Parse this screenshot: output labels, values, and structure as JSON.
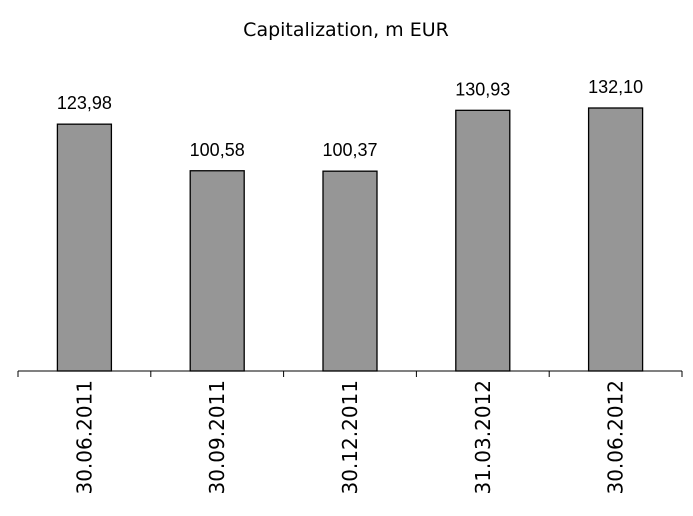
{
  "chart_data": {
    "type": "bar",
    "title": "Capitalization, m EUR",
    "categories": [
      "30.06.2011",
      "30.09.2011",
      "30.12.2011",
      "31.03.2012",
      "30.06.2012"
    ],
    "values": [
      123.98,
      100.58,
      100.37,
      130.93,
      132.1
    ],
    "value_labels": [
      "123,98",
      "100,58",
      "100,37",
      "130,93",
      "132,10"
    ],
    "color": "#969696"
  }
}
